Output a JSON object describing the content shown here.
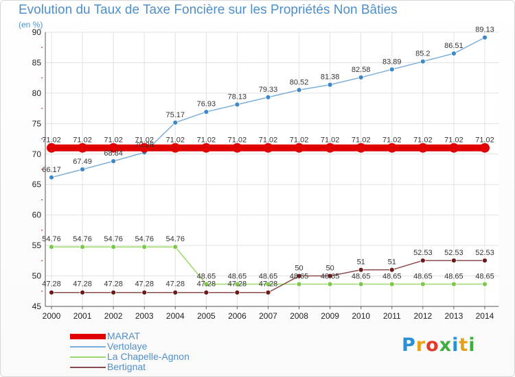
{
  "header": {
    "title": "Evolution du Taux de Taxe Foncière sur les Propriétés Non Bâties",
    "unit": "(en %)"
  },
  "logo": {
    "text": "Proxiti",
    "colors": [
      "#2b8fd6",
      "#e8a21a",
      "#e23a2a",
      "#3fae3f",
      "#2b8fd6",
      "#e8a21a",
      "#3fae3f"
    ]
  },
  "chart_data": {
    "type": "line",
    "x": [
      "2000",
      "2001",
      "2002",
      "2003",
      "2004",
      "2005",
      "2006",
      "2007",
      "2008",
      "2009",
      "2010",
      "2011",
      "2012",
      "2013",
      "2014"
    ],
    "ylim": [
      45,
      90
    ],
    "yticks": [
      45,
      50,
      55,
      60,
      65,
      70,
      75,
      80,
      85,
      90
    ],
    "grid": true,
    "legend_position": "bottom-left",
    "series": [
      {
        "name": "MARAT",
        "color": "#e00000",
        "values": [
          71.02,
          71.02,
          71.02,
          71.02,
          71.02,
          71.02,
          71.02,
          71.02,
          71.02,
          71.02,
          71.02,
          71.02,
          71.02,
          71.02,
          71.02
        ],
        "labels": [
          "71.02",
          "71.02",
          "71.02",
          "71.02",
          "71.02",
          "71.02",
          "71.02",
          "71.02",
          "71.02",
          "71.02",
          "71.02",
          "71.02",
          "71.02",
          "71.02",
          "71.02"
        ]
      },
      {
        "name": "Vertolaye",
        "color": "#7aaedb",
        "marker": "#3f88c8",
        "values": [
          66.17,
          67.49,
          68.84,
          70.26,
          75.17,
          76.93,
          78.13,
          79.33,
          80.52,
          81.38,
          82.58,
          83.89,
          85.2,
          86.51,
          89.13
        ],
        "labels": [
          "66.17",
          "67.49",
          "68.84",
          "70.26",
          "75.17",
          "76.93",
          "78.13",
          "79.33",
          "80.52",
          "81.38",
          "82.58",
          "83.89",
          "85.2",
          "86.51",
          "89.13"
        ]
      },
      {
        "name": "La Chapelle-Agnon",
        "color": "#9ad86a",
        "marker": "#7cc84a",
        "values": [
          54.76,
          54.76,
          54.76,
          54.76,
          54.76,
          48.65,
          48.65,
          48.65,
          48.65,
          48.65,
          48.65,
          48.65,
          48.65,
          48.65,
          48.65
        ],
        "labels": [
          "54.76",
          "54.76",
          "54.76",
          "54.76",
          "54.76",
          "48.65",
          "48.65",
          "48.65",
          "48.65",
          "48.65",
          "48.65",
          "48.65",
          "48.65",
          "48.65",
          "48.65"
        ]
      },
      {
        "name": "Bertignat",
        "color": "#8a4a4a",
        "marker": "#6b1a1a",
        "values": [
          47.28,
          47.28,
          47.28,
          47.28,
          47.28,
          47.28,
          47.28,
          47.28,
          50,
          50,
          51,
          51,
          52.53,
          52.53,
          52.53
        ],
        "labels": [
          "47.28",
          "47.28",
          "47.28",
          "47.28",
          "47.28",
          "47.28",
          "47.28",
          "47.28",
          "50",
          "50",
          "51",
          "51",
          "52.53",
          "52.53",
          "52.53"
        ]
      }
    ]
  }
}
